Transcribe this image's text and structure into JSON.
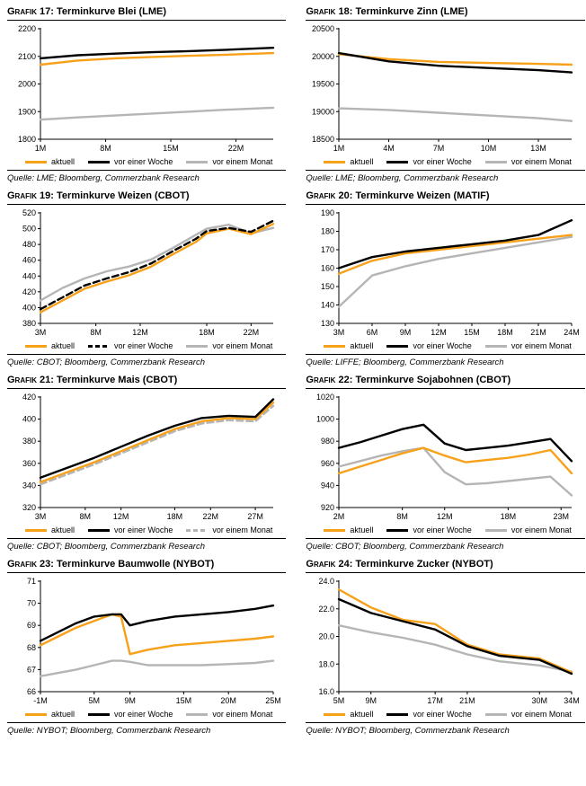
{
  "page": {
    "kind": "commodity-forward-curves-report"
  },
  "colors": {
    "aktuell": "#F7A11A",
    "vor_einer_woche": "#000000",
    "vor_einem_monat": "#B5B5B5",
    "axis": "#000000",
    "background": "#FFFFFF"
  },
  "chart_data": [
    {
      "type": "line",
      "title_prefix": "Grafik 17:",
      "title": "Terminkurve Blei (LME)",
      "source": "Quelle: LME; Bloomberg, Commerzbank Research",
      "x": [
        1,
        5,
        9,
        13,
        17,
        21,
        26
      ],
      "xticks": [
        1,
        8,
        15,
        22
      ],
      "xtick_suffix": "M",
      "ylim": [
        1800,
        2200
      ],
      "yticks": [
        1800,
        1900,
        2000,
        2100,
        2200
      ],
      "ytick_decimals": 0,
      "legend_position": "bottom",
      "grid": false,
      "series": [
        {
          "name": "aktuell",
          "color": "#F7A11A",
          "dash": false,
          "values": [
            2070,
            2085,
            2093,
            2098,
            2102,
            2106,
            2112
          ]
        },
        {
          "name": "vor einer Woche",
          "color": "#000000",
          "dash": false,
          "values": [
            2093,
            2104,
            2110,
            2115,
            2119,
            2124,
            2131
          ]
        },
        {
          "name": "vor einem Monat",
          "color": "#B5B5B5",
          "dash": false,
          "values": [
            1871,
            1879,
            1886,
            1893,
            1900,
            1907,
            1914
          ]
        }
      ]
    },
    {
      "type": "line",
      "title_prefix": "Grafik 18:",
      "title": "Terminkurve Zinn (LME)",
      "source": "Quelle: LME; Bloomberg, Commerzbank Research",
      "x": [
        1,
        4,
        7,
        10,
        13,
        15
      ],
      "xticks": [
        1,
        4,
        7,
        10,
        13
      ],
      "xtick_suffix": "M",
      "ylim": [
        18500,
        20500
      ],
      "yticks": [
        18500,
        19000,
        19500,
        20000,
        20500
      ],
      "ytick_decimals": 0,
      "legend_position": "bottom",
      "grid": false,
      "series": [
        {
          "name": "aktuell",
          "color": "#F7A11A",
          "dash": false,
          "values": [
            20040,
            19950,
            19900,
            19880,
            19865,
            19850
          ]
        },
        {
          "name": "vor einer Woche",
          "color": "#000000",
          "dash": false,
          "values": [
            20060,
            19910,
            19830,
            19790,
            19750,
            19710
          ]
        },
        {
          "name": "vor einem Monat",
          "color": "#B5B5B5",
          "dash": false,
          "values": [
            19060,
            19030,
            18980,
            18930,
            18880,
            18830
          ]
        }
      ]
    },
    {
      "type": "line",
      "title_prefix": "Grafik 19:",
      "title": "Terminkurve Weizen (CBOT)",
      "source": "Quelle: CBOT; Bloomberg, Commerzbank Research",
      "x": [
        3,
        5,
        7,
        9,
        11,
        13,
        15,
        17,
        18,
        20,
        22,
        24
      ],
      "xticks": [
        3,
        8,
        12,
        18,
        22
      ],
      "xtick_suffix": "M",
      "ylim": [
        380,
        520
      ],
      "yticks": [
        380,
        400,
        420,
        440,
        460,
        480,
        500,
        520
      ],
      "ytick_decimals": 0,
      "legend_position": "bottom",
      "grid": false,
      "series": [
        {
          "name": "aktuell",
          "color": "#F7A11A",
          "dash": false,
          "values": [
            394,
            409,
            424,
            433,
            441,
            452,
            468,
            483,
            494,
            500,
            493,
            506
          ]
        },
        {
          "name": "vor einer Woche",
          "color": "#000000",
          "dash": true,
          "values": [
            398,
            413,
            428,
            437,
            445,
            456,
            472,
            487,
            497,
            501,
            496,
            510
          ]
        },
        {
          "name": "vor einem Monat",
          "color": "#B5B5B5",
          "dash": false,
          "values": [
            409,
            425,
            437,
            446,
            452,
            461,
            476,
            492,
            500,
            505,
            494,
            501
          ]
        }
      ]
    },
    {
      "type": "line",
      "title_prefix": "Grafik 20:",
      "title": "Terminkurve Weizen (MATIF)",
      "source": "Quelle: LIFFE; Bloomberg, Commerzbank Research",
      "x": [
        3,
        6,
        9,
        12,
        15,
        18,
        21,
        24
      ],
      "xticks": [
        3,
        6,
        9,
        12,
        15,
        18,
        21,
        24
      ],
      "xtick_suffix": "M",
      "ylim": [
        130,
        190
      ],
      "yticks": [
        130,
        140,
        150,
        160,
        170,
        180,
        190
      ],
      "ytick_decimals": 0,
      "legend_position": "bottom",
      "grid": false,
      "series": [
        {
          "name": "aktuell",
          "color": "#F7A11A",
          "dash": false,
          "values": [
            157,
            164,
            168,
            170,
            172,
            174,
            176,
            178
          ]
        },
        {
          "name": "vor einer Woche",
          "color": "#000000",
          "dash": false,
          "values": [
            160,
            166,
            169,
            171,
            173,
            175,
            178,
            186
          ]
        },
        {
          "name": "vor einem Monat",
          "color": "#B5B5B5",
          "dash": false,
          "values": [
            139,
            156,
            161,
            165,
            168,
            171,
            174,
            177
          ]
        }
      ]
    },
    {
      "type": "line",
      "title_prefix": "Grafik 21:",
      "title": "Terminkurve Mais (CBOT)",
      "source": "Quelle: CBOT; Bloomberg, Commerzbank Research",
      "x": [
        3,
        6,
        9,
        12,
        15,
        18,
        21,
        24,
        27,
        29
      ],
      "xticks": [
        3,
        8,
        12,
        18,
        22,
        27
      ],
      "xtick_suffix": "M",
      "ylim": [
        320,
        420
      ],
      "yticks": [
        320,
        340,
        360,
        380,
        400,
        420
      ],
      "ytick_decimals": 0,
      "legend_position": "bottom",
      "grid": false,
      "series": [
        {
          "name": "aktuell",
          "color": "#F7A11A",
          "dash": false,
          "values": [
            343,
            352,
            361,
            371,
            381,
            391,
            398,
            401,
            400,
            415
          ]
        },
        {
          "name": "vor einer Woche",
          "color": "#000000",
          "dash": false,
          "values": [
            347,
            356,
            365,
            375,
            385,
            394,
            401,
            403,
            402,
            418
          ]
        },
        {
          "name": "vor einem Monat",
          "color": "#B5B5B5",
          "dash": true,
          "values": [
            341,
            350,
            359,
            369,
            379,
            389,
            396,
            399,
            398,
            412
          ]
        }
      ]
    },
    {
      "type": "line",
      "title_prefix": "Grafik 22:",
      "title": "Terminkurve Sojabohnen (CBOT)",
      "source": "Quelle: CBOT; Bloomberg, Commerzbank Research",
      "x": [
        2,
        4,
        6,
        8,
        10,
        12,
        14,
        16,
        18,
        20,
        22,
        24
      ],
      "xticks": [
        2,
        8,
        12,
        18,
        23
      ],
      "xtick_suffix": "M",
      "ylim": [
        920,
        1020
      ],
      "yticks": [
        920,
        940,
        960,
        980,
        1000,
        1020
      ],
      "ytick_decimals": 0,
      "legend_position": "bottom",
      "grid": false,
      "series": [
        {
          "name": "aktuell",
          "color": "#F7A11A",
          "dash": false,
          "values": [
            951,
            957,
            963,
            969,
            974,
            967,
            961,
            963,
            965,
            968,
            972,
            951
          ]
        },
        {
          "name": "vor einer Woche",
          "color": "#000000",
          "dash": false,
          "values": [
            974,
            979,
            985,
            991,
            995,
            978,
            972,
            974,
            976,
            979,
            982,
            962
          ]
        },
        {
          "name": "vor einem Monat",
          "color": "#B5B5B5",
          "dash": false,
          "values": [
            957,
            962,
            967,
            971,
            974,
            952,
            941,
            942,
            944,
            946,
            948,
            931
          ]
        }
      ]
    },
    {
      "type": "line",
      "title_prefix": "Grafik 23:",
      "title": "Terminkurve Baumwolle (NYBOT)",
      "source": "Quelle: NYBOT; Bloomberg, Commerzbank Research",
      "x": [
        -1,
        1,
        3,
        5,
        7,
        8,
        9,
        11,
        14,
        17,
        20,
        23,
        25
      ],
      "xticks": [
        -1,
        5,
        9,
        15,
        20,
        25
      ],
      "xtick_suffix": "M",
      "ylim": [
        66,
        71
      ],
      "yticks": [
        66,
        67,
        68,
        69,
        70,
        71
      ],
      "ytick_decimals": 0,
      "legend_position": "bottom",
      "grid": false,
      "series": [
        {
          "name": "aktuell",
          "color": "#F7A11A",
          "dash": false,
          "values": [
            68.1,
            68.5,
            68.9,
            69.2,
            69.5,
            69.4,
            67.7,
            67.9,
            68.1,
            68.2,
            68.3,
            68.4,
            68.5
          ]
        },
        {
          "name": "vor einer Woche",
          "color": "#000000",
          "dash": false,
          "values": [
            68.3,
            68.7,
            69.1,
            69.4,
            69.5,
            69.5,
            69.0,
            69.2,
            69.4,
            69.5,
            69.6,
            69.75,
            69.9
          ]
        },
        {
          "name": "vor einem Monat",
          "color": "#B5B5B5",
          "dash": false,
          "values": [
            66.7,
            66.85,
            67.0,
            67.2,
            67.4,
            67.4,
            67.35,
            67.2,
            67.2,
            67.2,
            67.25,
            67.3,
            67.4
          ]
        }
      ]
    },
    {
      "type": "line",
      "title_prefix": "Grafik 24:",
      "title": "Terminkurve Zucker (NYBOT)",
      "source": "Quelle: NYBOT; Bloomberg, Commerzbank Research",
      "x": [
        5,
        9,
        13,
        17,
        21,
        25,
        30,
        34
      ],
      "xticks": [
        5,
        9,
        17,
        21,
        30,
        34
      ],
      "xtick_suffix": "M",
      "ylim": [
        16,
        24
      ],
      "yticks": [
        16,
        18,
        20,
        22,
        24
      ],
      "ytick_decimals": 1,
      "legend_position": "bottom",
      "grid": false,
      "series": [
        {
          "name": "aktuell",
          "color": "#F7A11A",
          "dash": false,
          "values": [
            23.4,
            22.1,
            21.2,
            20.9,
            19.4,
            18.7,
            18.4,
            17.4
          ]
        },
        {
          "name": "vor einer Woche",
          "color": "#000000",
          "dash": false,
          "values": [
            22.7,
            21.7,
            21.1,
            20.5,
            19.3,
            18.6,
            18.3,
            17.3
          ]
        },
        {
          "name": "vor einem Monat",
          "color": "#B5B5B5",
          "dash": false,
          "values": [
            20.8,
            20.3,
            19.9,
            19.4,
            18.7,
            18.2,
            17.9,
            17.45
          ]
        }
      ]
    }
  ]
}
